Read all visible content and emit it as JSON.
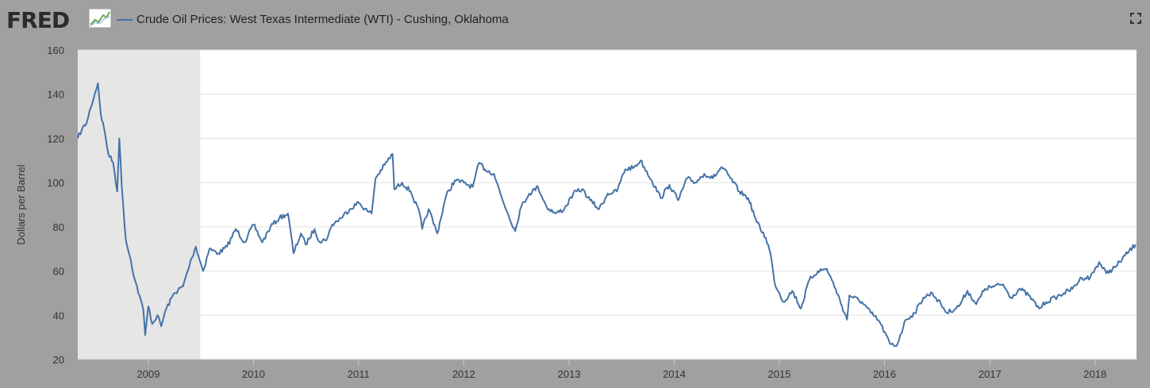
{
  "header": {
    "logo_text": "FRED",
    "logo_icon": "graph-icon",
    "series_title": "Crude Oil Prices: West Texas Intermediate (WTI) - Cushing, Oklahoma",
    "fullscreen_icon": "fullscreen-icon"
  },
  "chart_data": {
    "type": "line",
    "title": "Crude Oil Prices: West Texas Intermediate (WTI) - Cushing, Oklahoma",
    "xlabel": "",
    "ylabel": "Dollars per Barrel",
    "xlim": [
      "2008-05-01",
      "2018-05-25"
    ],
    "ylim": [
      20,
      160
    ],
    "yticks": [
      20,
      40,
      60,
      80,
      100,
      120,
      140,
      160
    ],
    "xticks": [
      "2009",
      "2010",
      "2011",
      "2012",
      "2013",
      "2014",
      "2015",
      "2016",
      "2017",
      "2018"
    ],
    "grid": true,
    "recession": {
      "start": "2008-05-01",
      "end": "2009-06-30",
      "color": "#e6e6e6"
    },
    "series": [
      {
        "color": "#4572a7",
        "points": [
          [
            "2008-05-01",
            120
          ],
          [
            "2008-05-15",
            124
          ],
          [
            "2008-06-01",
            127
          ],
          [
            "2008-06-15",
            134
          ],
          [
            "2008-07-01",
            141
          ],
          [
            "2008-07-10",
            145
          ],
          [
            "2008-07-20",
            131
          ],
          [
            "2008-08-01",
            124
          ],
          [
            "2008-08-15",
            113
          ],
          [
            "2008-09-01",
            109
          ],
          [
            "2008-09-15",
            96
          ],
          [
            "2008-09-22",
            120
          ],
          [
            "2008-10-01",
            98
          ],
          [
            "2008-10-15",
            74
          ],
          [
            "2008-11-01",
            65
          ],
          [
            "2008-11-15",
            56
          ],
          [
            "2008-12-01",
            49
          ],
          [
            "2008-12-15",
            42
          ],
          [
            "2008-12-21",
            31
          ],
          [
            "2009-01-01",
            44
          ],
          [
            "2009-01-15",
            36
          ],
          [
            "2009-02-01",
            40
          ],
          [
            "2009-02-15",
            35
          ],
          [
            "2009-03-01",
            42
          ],
          [
            "2009-04-01",
            50
          ],
          [
            "2009-05-01",
            53
          ],
          [
            "2009-06-01",
            66
          ],
          [
            "2009-06-15",
            71
          ],
          [
            "2009-07-10",
            60
          ],
          [
            "2009-08-01",
            70
          ],
          [
            "2009-09-01",
            68
          ],
          [
            "2009-10-01",
            71
          ],
          [
            "2009-11-01",
            79
          ],
          [
            "2009-12-01",
            73
          ],
          [
            "2010-01-01",
            81
          ],
          [
            "2010-02-01",
            73
          ],
          [
            "2010-03-01",
            80
          ],
          [
            "2010-04-01",
            84
          ],
          [
            "2010-05-01",
            86
          ],
          [
            "2010-05-20",
            68
          ],
          [
            "2010-06-15",
            77
          ],
          [
            "2010-07-01",
            72
          ],
          [
            "2010-08-01",
            79
          ],
          [
            "2010-08-20",
            73
          ],
          [
            "2010-09-15",
            75
          ],
          [
            "2010-10-01",
            81
          ],
          [
            "2010-11-01",
            84
          ],
          [
            "2010-12-01",
            88
          ],
          [
            "2011-01-01",
            91
          ],
          [
            "2011-02-01",
            87
          ],
          [
            "2011-02-15",
            86
          ],
          [
            "2011-03-01",
            102
          ],
          [
            "2011-04-01",
            108
          ],
          [
            "2011-04-29",
            113
          ],
          [
            "2011-05-05",
            97
          ],
          [
            "2011-06-01",
            100
          ],
          [
            "2011-07-01",
            96
          ],
          [
            "2011-08-01",
            86
          ],
          [
            "2011-08-10",
            79
          ],
          [
            "2011-09-01",
            88
          ],
          [
            "2011-10-01",
            77
          ],
          [
            "2011-11-01",
            94
          ],
          [
            "2011-12-01",
            101
          ],
          [
            "2012-01-01",
            100
          ],
          [
            "2012-02-01",
            98
          ],
          [
            "2012-02-24",
            109
          ],
          [
            "2012-03-15",
            106
          ],
          [
            "2012-04-15",
            104
          ],
          [
            "2012-05-15",
            92
          ],
          [
            "2012-06-28",
            78
          ],
          [
            "2012-07-15",
            88
          ],
          [
            "2012-08-15",
            95
          ],
          [
            "2012-09-15",
            98
          ],
          [
            "2012-10-15",
            89
          ],
          [
            "2012-11-15",
            86
          ],
          [
            "2012-12-15",
            88
          ],
          [
            "2013-01-15",
            95
          ],
          [
            "2013-02-15",
            97
          ],
          [
            "2013-03-15",
            92
          ],
          [
            "2013-04-15",
            88
          ],
          [
            "2013-05-15",
            95
          ],
          [
            "2013-06-15",
            96
          ],
          [
            "2013-07-15",
            106
          ],
          [
            "2013-08-15",
            107
          ],
          [
            "2013-09-06",
            110
          ],
          [
            "2013-10-15",
            101
          ],
          [
            "2013-11-15",
            93
          ],
          [
            "2013-12-15",
            99
          ],
          [
            "2014-01-15",
            92
          ],
          [
            "2014-02-15",
            102
          ],
          [
            "2014-03-15",
            100
          ],
          [
            "2014-04-15",
            104
          ],
          [
            "2014-05-15",
            102
          ],
          [
            "2014-06-15",
            107
          ],
          [
            "2014-07-15",
            102
          ],
          [
            "2014-08-15",
            96
          ],
          [
            "2014-09-15",
            93
          ],
          [
            "2014-10-15",
            82
          ],
          [
            "2014-11-15",
            75
          ],
          [
            "2014-12-01",
            68
          ],
          [
            "2014-12-15",
            55
          ],
          [
            "2015-01-15",
            46
          ],
          [
            "2015-02-15",
            51
          ],
          [
            "2015-03-17",
            43
          ],
          [
            "2015-04-15",
            56
          ],
          [
            "2015-05-15",
            60
          ],
          [
            "2015-06-15",
            61
          ],
          [
            "2015-07-15",
            52
          ],
          [
            "2015-08-24",
            38
          ],
          [
            "2015-09-01",
            49
          ],
          [
            "2015-10-15",
            46
          ],
          [
            "2015-11-15",
            41
          ],
          [
            "2015-12-15",
            37
          ],
          [
            "2016-01-20",
            27
          ],
          [
            "2016-02-11",
            26
          ],
          [
            "2016-03-15",
            38
          ],
          [
            "2016-04-15",
            41
          ],
          [
            "2016-05-15",
            48
          ],
          [
            "2016-06-15",
            50
          ],
          [
            "2016-07-15",
            45
          ],
          [
            "2016-08-05",
            41
          ],
          [
            "2016-09-15",
            44
          ],
          [
            "2016-10-15",
            51
          ],
          [
            "2016-11-15",
            45
          ],
          [
            "2016-12-15",
            52
          ],
          [
            "2017-01-15",
            53
          ],
          [
            "2017-02-15",
            54
          ],
          [
            "2017-03-15",
            48
          ],
          [
            "2017-04-15",
            52
          ],
          [
            "2017-05-15",
            49
          ],
          [
            "2017-06-21",
            43
          ],
          [
            "2017-07-15",
            46
          ],
          [
            "2017-08-15",
            48
          ],
          [
            "2017-09-15",
            50
          ],
          [
            "2017-10-15",
            52
          ],
          [
            "2017-11-15",
            57
          ],
          [
            "2017-12-15",
            57
          ],
          [
            "2018-01-15",
            64
          ],
          [
            "2018-02-09",
            59
          ],
          [
            "2018-03-15",
            62
          ],
          [
            "2018-04-15",
            67
          ],
          [
            "2018-05-22",
            72
          ]
        ]
      }
    ]
  }
}
